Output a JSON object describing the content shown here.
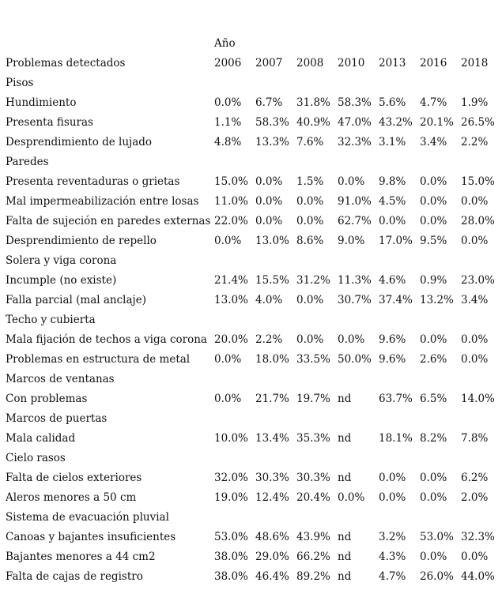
{
  "table": {
    "year_group_label": "Año",
    "header_label": "Problemas detectados",
    "years": [
      "2006",
      "2007",
      "2008",
      "2010",
      "2013",
      "2016",
      "2018"
    ],
    "rows": [
      {
        "type": "section",
        "label": "Pisos"
      },
      {
        "type": "data",
        "label": "Hundimiento",
        "values": [
          "0.0%",
          "6.7%",
          "31.8%",
          "58.3%",
          "5.6%",
          "4.7%",
          "1.9%"
        ]
      },
      {
        "type": "data",
        "label": "Presenta fisuras",
        "values": [
          "1.1%",
          "58.3%",
          "40.9%",
          "47.0%",
          "43.2%",
          "20.1%",
          "26.5%"
        ]
      },
      {
        "type": "data",
        "label": "Desprendimiento de lujado",
        "values": [
          "4.8%",
          "13.3%",
          "7.6%",
          "32.3%",
          "3.1%",
          "3.4%",
          "2.2%"
        ]
      },
      {
        "type": "section",
        "label": "Paredes"
      },
      {
        "type": "data",
        "label": "Presenta reventaduras o grietas",
        "values": [
          "15.0%",
          "0.0%",
          "1.5%",
          "0.0%",
          "9.8%",
          "0.0%",
          "15.0%"
        ]
      },
      {
        "type": "data",
        "label": "Mal impermeabilización entre losas",
        "values": [
          "11.0%",
          "0.0%",
          "0.0%",
          "91.0%",
          "4.5%",
          "0.0%",
          "0.0%"
        ]
      },
      {
        "type": "data",
        "label": "Falta de sujeción en paredes externas",
        "values": [
          "22.0%",
          "0.0%",
          "0.0%",
          "62.7%",
          "0.0%",
          "0.0%",
          "28.0%"
        ]
      },
      {
        "type": "data",
        "label": "Desprendimiento de repello",
        "values": [
          "0.0%",
          "13.0%",
          "8.6%",
          "9.0%",
          "17.0%",
          "9.5%",
          "0.0%"
        ]
      },
      {
        "type": "section",
        "label": "Solera y viga corona"
      },
      {
        "type": "data",
        "label": "Incumple (no existe)",
        "values": [
          "21.4%",
          "15.5%",
          "31.2%",
          "11.3%",
          "4.6%",
          "0.9%",
          "23.0%"
        ]
      },
      {
        "type": "data",
        "label": "Falla parcial (mal anclaje)",
        "values": [
          "13.0%",
          "4.0%",
          "0.0%",
          "30.7%",
          "37.4%",
          "13.2%",
          "3.4%"
        ]
      },
      {
        "type": "section",
        "label": "Techo y cubierta"
      },
      {
        "type": "data",
        "label": "Mala fijación de techos a viga corona",
        "values": [
          "20.0%",
          "2.2%",
          "0.0%",
          "0.0%",
          "9.6%",
          "0.0%",
          "0.0%"
        ]
      },
      {
        "type": "data",
        "label": "Problemas en estructura de metal",
        "values": [
          "0.0%",
          "18.0%",
          "33.5%",
          "50.0%",
          "9.6%",
          "2.6%",
          "0.0%"
        ]
      },
      {
        "type": "section",
        "label": "Marcos de ventanas"
      },
      {
        "type": "data",
        "label": "Con problemas",
        "values": [
          "0.0%",
          "21.7%",
          "19.7%",
          "nd",
          "63.7%",
          "6.5%",
          "14.0%"
        ]
      },
      {
        "type": "section",
        "label": "Marcos de puertas"
      },
      {
        "type": "data",
        "label": "Mala calidad",
        "values": [
          "10.0%",
          "13.4%",
          "35.3%",
          "nd",
          "18.1%",
          "8.2%",
          "7.8%"
        ]
      },
      {
        "type": "section",
        "label": "Cielo rasos"
      },
      {
        "type": "data",
        "label": "Falta de cielos exteriores",
        "values": [
          "32.0%",
          "30.3%",
          "30.3%",
          "nd",
          "0.0%",
          "0.0%",
          "6.2%"
        ]
      },
      {
        "type": "data",
        "label": "Aleros menores a 50 cm",
        "values": [
          "19.0%",
          "12.4%",
          "20.4%",
          "0.0%",
          "0.0%",
          "0.0%",
          "2.0%"
        ]
      },
      {
        "type": "section",
        "label": "Sistema de evacuación pluvial"
      },
      {
        "type": "data",
        "label": "Canoas y bajantes insuficientes",
        "values": [
          "53.0%",
          "48.6%",
          "43.9%",
          "nd",
          "3.2%",
          "53.0%",
          "32.3%"
        ]
      },
      {
        "type": "data",
        "label": "Bajantes menores a 44 cm2",
        "values": [
          "38.0%",
          "29.0%",
          "66.2%",
          "nd",
          "4.3%",
          "0.0%",
          "0.0%"
        ]
      },
      {
        "type": "data",
        "label": "Falta de cajas de registro",
        "values": [
          "38.0%",
          "46.4%",
          "89.2%",
          "nd",
          "4.7%",
          "26.0%",
          "44.0%"
        ]
      }
    ]
  }
}
